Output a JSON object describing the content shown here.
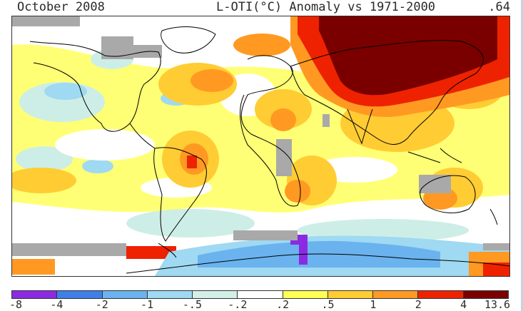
{
  "header": {
    "date": "October 2008",
    "title": "L-OTI(°C) Anomaly vs 1971-2000",
    "global_mean": ".64"
  },
  "legend": {
    "ticks": [
      "-8",
      "-4",
      "-2",
      "-1",
      "-.5",
      "-.2",
      ".2",
      ".5",
      "1",
      "2",
      "4",
      "13.6"
    ],
    "colors": [
      "#8a2be2",
      "#3f7fe8",
      "#6ab3ee",
      "#9fd9f2",
      "#d2f0e8",
      "#ffffff",
      "#ffff55",
      "#ffcc33",
      "#ff9922",
      "#ee2200",
      "#7a0000"
    ]
  },
  "map_colors": {
    "no_data": "#a9a9a9",
    "coastline": "#000000"
  }
}
